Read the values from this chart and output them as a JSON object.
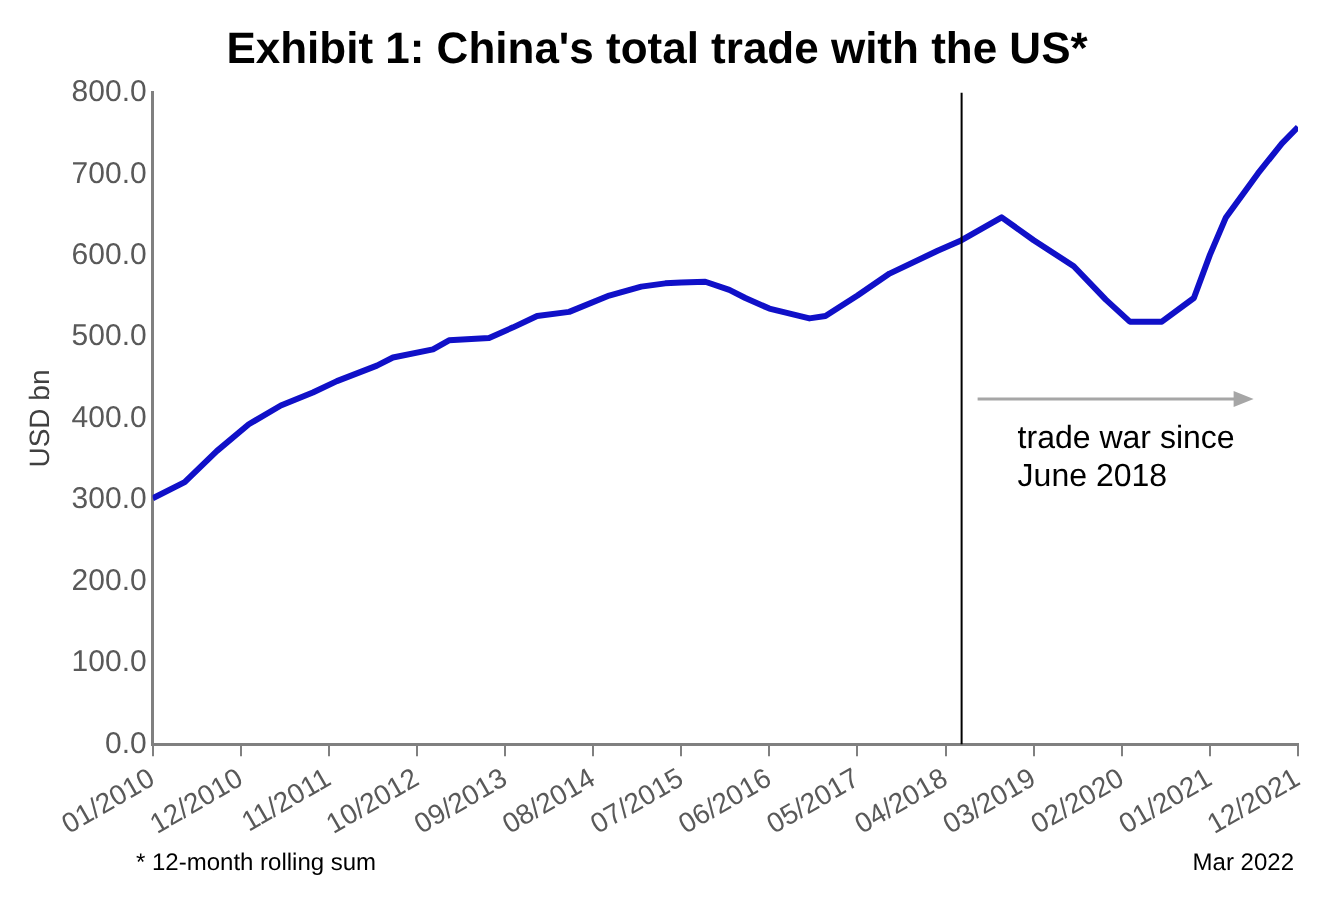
{
  "chart_data": {
    "type": "line",
    "title": "Exhibit 1: China's total trade with the US*",
    "ylabel": "USD bn",
    "series": [
      {
        "color": "#1010c8",
        "x": [
          "2010-01",
          "2010-05",
          "2010-09",
          "2011-01",
          "2011-05",
          "2011-09",
          "2011-12",
          "2012-05",
          "2012-07",
          "2012-12",
          "2013-02",
          "2013-07",
          "2013-10",
          "2014-01",
          "2014-05",
          "2014-10",
          "2015-02",
          "2015-05",
          "2015-07",
          "2015-10",
          "2016-01",
          "2016-03",
          "2016-06",
          "2016-11",
          "2017-01",
          "2017-05",
          "2017-09",
          "2018-03",
          "2018-06",
          "2018-11",
          "2019-03",
          "2019-08",
          "2019-12",
          "2020-03",
          "2020-07",
          "2020-11",
          "2021-01",
          "2021-03",
          "2021-07",
          "2021-10",
          "2021-12"
        ],
        "values": [
          302,
          322,
          360,
          393,
          416,
          432,
          446,
          465,
          475,
          485,
          496,
          499,
          512,
          526,
          531,
          551,
          562,
          566,
          567,
          568,
          558,
          548,
          535,
          523,
          526,
          551,
          578,
          606,
          619,
          647,
          619,
          587,
          546,
          519,
          519,
          548,
          601,
          647,
          701,
          738,
          758
        ]
      }
    ],
    "xlim": [
      "2010-01",
      "2021-12"
    ],
    "xticks": [
      {
        "value": "2010-01",
        "label": "01/2010"
      },
      {
        "value": "2010-12",
        "label": "12/2010"
      },
      {
        "value": "2011-11",
        "label": "11/2011"
      },
      {
        "value": "2012-10",
        "label": "10/2012"
      },
      {
        "value": "2013-09",
        "label": "09/2013"
      },
      {
        "value": "2014-08",
        "label": "08/2014"
      },
      {
        "value": "2015-07",
        "label": "07/2015"
      },
      {
        "value": "2016-06",
        "label": "06/2016"
      },
      {
        "value": "2017-05",
        "label": "05/2017"
      },
      {
        "value": "2018-04",
        "label": "04/2018"
      },
      {
        "value": "2019-03",
        "label": "03/2019"
      },
      {
        "value": "2020-02",
        "label": "02/2020"
      },
      {
        "value": "2021-01",
        "label": "01/2021"
      },
      {
        "value": "2021-12",
        "label": "12/2021"
      }
    ],
    "ylim": [
      0,
      800
    ],
    "yticks": [
      {
        "value": 0,
        "label": "0.0"
      },
      {
        "value": 100,
        "label": "100.0"
      },
      {
        "value": 200,
        "label": "200.0"
      },
      {
        "value": 300,
        "label": "300.0"
      },
      {
        "value": 400,
        "label": "400.0"
      },
      {
        "value": 500,
        "label": "500.0"
      },
      {
        "value": 600,
        "label": "600.0"
      },
      {
        "value": 700,
        "label": "700.0"
      },
      {
        "value": 800,
        "label": "800.0"
      }
    ],
    "ref_lines": [
      {
        "axis": "x",
        "value": "2018-06",
        "label": "trade war since June 2018",
        "color": "#000000"
      }
    ],
    "grid": false,
    "legend": false,
    "marker": "none",
    "line_style": "solid",
    "annotations": [
      "* 12-month rolling sum",
      "Mar 2022"
    ]
  }
}
